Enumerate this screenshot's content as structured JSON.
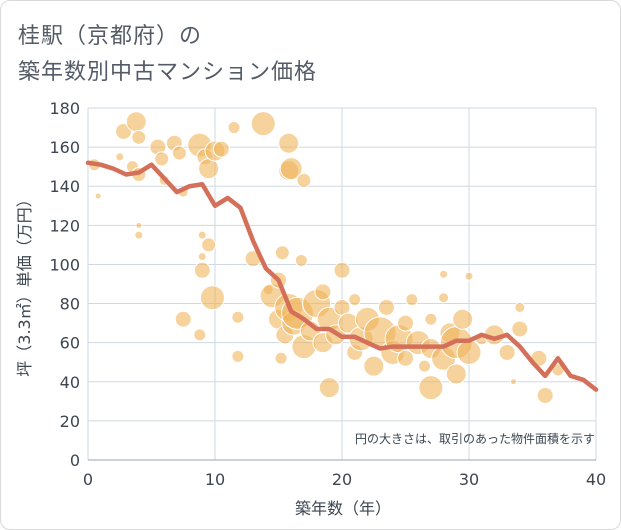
{
  "title_line1": "桂駅（京都府）の",
  "title_line2": "築年数別中古マンション価格",
  "chart_data": {
    "type": "scatter",
    "xlabel": "築年数（年）",
    "ylabel": "坪（3.3㎡）単価（万円）",
    "xlim": [
      0,
      40
    ],
    "ylim": [
      0,
      180
    ],
    "xticks": [
      "0",
      "10",
      "20",
      "30",
      "40"
    ],
    "yticks": [
      "0",
      "20",
      "40",
      "60",
      "80",
      "100",
      "120",
      "140",
      "160",
      "180"
    ],
    "annotation": "円の大きさは、取引のあった物件面積を示す",
    "grid": true,
    "colors": {
      "bubble": "#f0b45a",
      "line": "#d4705a",
      "grid": "#cfd8e3"
    },
    "average_line": {
      "x": [
        0,
        1,
        2,
        3,
        4,
        5,
        6,
        7,
        8,
        9,
        10,
        11,
        12,
        13,
        14,
        15,
        16,
        17,
        18,
        19,
        20,
        21,
        22,
        23,
        24,
        25,
        26,
        27,
        28,
        29,
        30,
        31,
        32,
        33,
        34,
        35,
        36,
        37,
        38,
        39,
        40
      ],
      "y": [
        152,
        151,
        149,
        146,
        147,
        151,
        144,
        137,
        140,
        141,
        130,
        134,
        129,
        112,
        98,
        92,
        76,
        72,
        67,
        67,
        63,
        63,
        60,
        57,
        58,
        58,
        58,
        58,
        58,
        61,
        61,
        64,
        62,
        64,
        58,
        50,
        43,
        52,
        43,
        41,
        36
      ]
    },
    "bubbles": [
      {
        "x": 0.5,
        "y": 151,
        "r": 6
      },
      {
        "x": 0.8,
        "y": 135,
        "r": 3
      },
      {
        "x": 2.5,
        "y": 155,
        "r": 4
      },
      {
        "x": 2.8,
        "y": 168,
        "r": 8
      },
      {
        "x": 3.5,
        "y": 150,
        "r": 6
      },
      {
        "x": 3.8,
        "y": 173,
        "r": 10
      },
      {
        "x": 4.0,
        "y": 165,
        "r": 7
      },
      {
        "x": 4.0,
        "y": 146,
        "r": 7
      },
      {
        "x": 4.0,
        "y": 120,
        "r": 3
      },
      {
        "x": 4.0,
        "y": 115,
        "r": 4
      },
      {
        "x": 5.5,
        "y": 160,
        "r": 8
      },
      {
        "x": 5.8,
        "y": 154,
        "r": 7
      },
      {
        "x": 6.0,
        "y": 143,
        "r": 5
      },
      {
        "x": 6.8,
        "y": 162,
        "r": 8
      },
      {
        "x": 7.2,
        "y": 157,
        "r": 7
      },
      {
        "x": 7.5,
        "y": 137,
        "r": 5
      },
      {
        "x": 8.8,
        "y": 161,
        "r": 12
      },
      {
        "x": 9.2,
        "y": 155,
        "r": 8
      },
      {
        "x": 9.5,
        "y": 149,
        "r": 10
      },
      {
        "x": 10.0,
        "y": 158,
        "r": 10
      },
      {
        "x": 10.5,
        "y": 159,
        "r": 8
      },
      {
        "x": 11.5,
        "y": 170,
        "r": 6
      },
      {
        "x": 9.0,
        "y": 115,
        "r": 4
      },
      {
        "x": 9.5,
        "y": 110,
        "r": 7
      },
      {
        "x": 9.0,
        "y": 104,
        "r": 4
      },
      {
        "x": 9.0,
        "y": 97,
        "r": 8
      },
      {
        "x": 9.8,
        "y": 83,
        "r": 12
      },
      {
        "x": 7.5,
        "y": 72,
        "r": 8
      },
      {
        "x": 8.8,
        "y": 64,
        "r": 6
      },
      {
        "x": 11.8,
        "y": 73,
        "r": 6
      },
      {
        "x": 11.8,
        "y": 53,
        "r": 6
      },
      {
        "x": 13.0,
        "y": 103,
        "r": 8
      },
      {
        "x": 13.8,
        "y": 172,
        "r": 12
      },
      {
        "x": 15.8,
        "y": 162,
        "r": 10
      },
      {
        "x": 15.8,
        "y": 148,
        "r": 10
      },
      {
        "x": 16.0,
        "y": 149,
        "r": 11
      },
      {
        "x": 17.0,
        "y": 143,
        "r": 7
      },
      {
        "x": 14.2,
        "y": 87,
        "r": 5
      },
      {
        "x": 14.5,
        "y": 84,
        "r": 12
      },
      {
        "x": 15.0,
        "y": 92,
        "r": 8
      },
      {
        "x": 15.3,
        "y": 106,
        "r": 7
      },
      {
        "x": 15.0,
        "y": 72,
        "r": 10
      },
      {
        "x": 15.5,
        "y": 64,
        "r": 9
      },
      {
        "x": 15.8,
        "y": 78,
        "r": 14
      },
      {
        "x": 16.2,
        "y": 70,
        "r": 12
      },
      {
        "x": 16.5,
        "y": 75,
        "r": 16
      },
      {
        "x": 15.2,
        "y": 52,
        "r": 6
      },
      {
        "x": 16.8,
        "y": 102,
        "r": 6
      },
      {
        "x": 17.0,
        "y": 58,
        "r": 12
      },
      {
        "x": 17.5,
        "y": 66,
        "r": 10
      },
      {
        "x": 18.0,
        "y": 80,
        "r": 14
      },
      {
        "x": 18.5,
        "y": 86,
        "r": 8
      },
      {
        "x": 18.5,
        "y": 60,
        "r": 10
      },
      {
        "x": 19.0,
        "y": 72,
        "r": 12
      },
      {
        "x": 19.5,
        "y": 64,
        "r": 10
      },
      {
        "x": 19.0,
        "y": 37,
        "r": 10
      },
      {
        "x": 20.0,
        "y": 97,
        "r": 8
      },
      {
        "x": 20.0,
        "y": 78,
        "r": 8
      },
      {
        "x": 20.5,
        "y": 70,
        "r": 10
      },
      {
        "x": 21.0,
        "y": 82,
        "r": 6
      },
      {
        "x": 21.0,
        "y": 55,
        "r": 8
      },
      {
        "x": 21.5,
        "y": 62,
        "r": 12
      },
      {
        "x": 22.0,
        "y": 72,
        "r": 12
      },
      {
        "x": 22.5,
        "y": 48,
        "r": 10
      },
      {
        "x": 23.0,
        "y": 65,
        "r": 16
      },
      {
        "x": 23.5,
        "y": 78,
        "r": 8
      },
      {
        "x": 24.0,
        "y": 55,
        "r": 12
      },
      {
        "x": 24.5,
        "y": 62,
        "r": 14
      },
      {
        "x": 25.0,
        "y": 52,
        "r": 8
      },
      {
        "x": 25.5,
        "y": 82,
        "r": 6
      },
      {
        "x": 25.0,
        "y": 70,
        "r": 8
      },
      {
        "x": 26.0,
        "y": 60,
        "r": 12
      },
      {
        "x": 26.5,
        "y": 48,
        "r": 6
      },
      {
        "x": 27.0,
        "y": 57,
        "r": 10
      },
      {
        "x": 27.0,
        "y": 37,
        "r": 12
      },
      {
        "x": 27.0,
        "y": 72,
        "r": 6
      },
      {
        "x": 28.0,
        "y": 95,
        "r": 4
      },
      {
        "x": 28.0,
        "y": 83,
        "r": 5
      },
      {
        "x": 28.0,
        "y": 52,
        "r": 12
      },
      {
        "x": 28.5,
        "y": 65,
        "r": 10
      },
      {
        "x": 29.0,
        "y": 60,
        "r": 16
      },
      {
        "x": 29.0,
        "y": 44,
        "r": 10
      },
      {
        "x": 29.5,
        "y": 72,
        "r": 10
      },
      {
        "x": 30.0,
        "y": 94,
        "r": 4
      },
      {
        "x": 30.0,
        "y": 55,
        "r": 12
      },
      {
        "x": 31.0,
        "y": 62,
        "r": 6
      },
      {
        "x": 32.0,
        "y": 64,
        "r": 10
      },
      {
        "x": 33.0,
        "y": 55,
        "r": 8
      },
      {
        "x": 33.5,
        "y": 40,
        "r": 3
      },
      {
        "x": 34.0,
        "y": 78,
        "r": 5
      },
      {
        "x": 34.0,
        "y": 67,
        "r": 8
      },
      {
        "x": 35.5,
        "y": 52,
        "r": 8
      },
      {
        "x": 36.0,
        "y": 33,
        "r": 8
      },
      {
        "x": 37.0,
        "y": 46,
        "r": 6
      }
    ]
  }
}
